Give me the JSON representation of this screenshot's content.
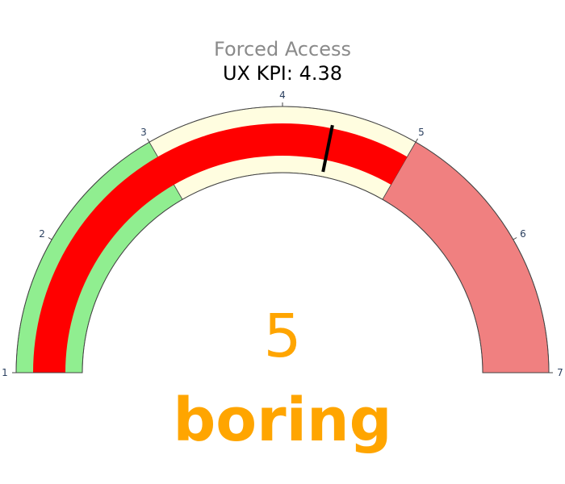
{
  "chart_data": {
    "type": "gauge",
    "title": "Forced Access",
    "subtitle": "UX KPI: 4.38",
    "range": [
      1,
      7
    ],
    "tick_labels": [
      "1",
      "2",
      "3",
      "4",
      "5",
      "6",
      "7"
    ],
    "steps": [
      {
        "range": [
          1,
          3
        ],
        "color": "#90ee90"
      },
      {
        "range": [
          3,
          5
        ],
        "color": "#fffde0"
      },
      {
        "range": [
          5,
          7
        ],
        "color": "#f08080"
      }
    ],
    "bar": {
      "range": [
        1,
        5
      ],
      "color": "#ff0000"
    },
    "threshold": {
      "value": 4.38,
      "color": "#000000"
    },
    "value": "5",
    "value_color": "#ffa500",
    "mood_label": "boring",
    "mood_color": "#ffa500"
  }
}
